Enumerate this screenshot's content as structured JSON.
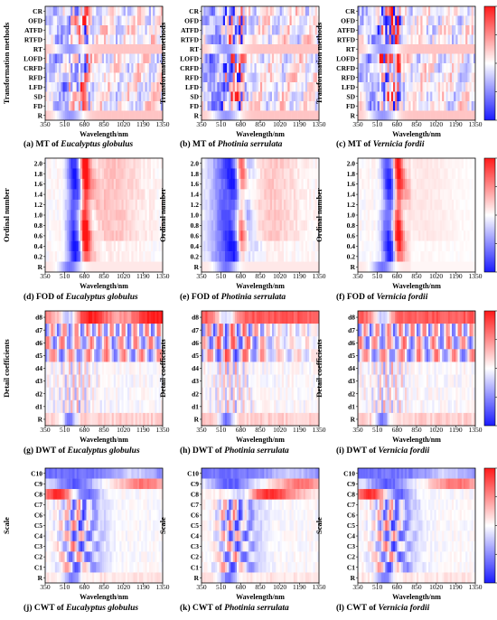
{
  "colorbar": {
    "ticks": [
      "1",
      "0.5",
      "0",
      "-0.5",
      "-1"
    ],
    "colors": {
      "low": "#1a1aff",
      "mid": "#ffffff",
      "high": "#ff1a1a"
    }
  },
  "x_axis": {
    "label": "Wavelength/nm",
    "ticks": [
      "350",
      "510",
      "680",
      "850",
      "1020",
      "1190",
      "1350"
    ]
  },
  "chart_data": [
    {
      "type": "heatmap",
      "panel": "a",
      "caption_prefix": "(a)",
      "caption_method": "MT of",
      "caption_species": "Eucalyptus globulus",
      "ylabel": "Transformation methods",
      "rows": [
        "CR",
        "OFD",
        "ATFD",
        "RTFD",
        "RT",
        "LOFD",
        "CRFD",
        "RFD",
        "LFD",
        "SD",
        "FD",
        "R"
      ],
      "xrange": [
        350,
        1350
      ],
      "clim": [
        -1,
        1
      ]
    },
    {
      "type": "heatmap",
      "panel": "b",
      "caption_prefix": "(b)",
      "caption_method": "MT of",
      "caption_species": "Photinia serrulata",
      "ylabel": "Transformation methods",
      "rows": [
        "CR",
        "OFD",
        "ATFD",
        "RTFD",
        "RT",
        "LOFD",
        "CRFD",
        "RFD",
        "LFD",
        "SD",
        "FD",
        "R"
      ],
      "xrange": [
        350,
        1350
      ],
      "clim": [
        -1,
        1
      ]
    },
    {
      "type": "heatmap",
      "panel": "c",
      "caption_prefix": "(c)",
      "caption_method": "MT of",
      "caption_species": "Vernicia fordii",
      "ylabel": "Transformation methods",
      "rows": [
        "CR",
        "OFD",
        "ATFD",
        "RTFD",
        "RT",
        "LOFD",
        "CRFD",
        "RFD",
        "LFD",
        "SD",
        "FD",
        "R"
      ],
      "xrange": [
        350,
        1350
      ],
      "clim": [
        -1,
        1
      ]
    },
    {
      "type": "heatmap",
      "panel": "d",
      "caption_prefix": "(d)",
      "caption_method": "FOD of",
      "caption_species": "Eucalyptus globulus",
      "ylabel": "Ordinal number",
      "rows": [
        "2.0",
        "1.8",
        "1.6",
        "1.4",
        "1.2",
        "1.0",
        "0.8",
        "0.6",
        "0.4",
        "0.2",
        "R"
      ],
      "xrange": [
        350,
        1350
      ],
      "clim": [
        -1,
        1
      ]
    },
    {
      "type": "heatmap",
      "panel": "e",
      "caption_prefix": "(e)",
      "caption_method": "FOD of",
      "caption_species": "Photinia serrulata",
      "ylabel": "Ordinal number",
      "rows": [
        "2.0",
        "1.8",
        "1.6",
        "1.4",
        "1.2",
        "1.0",
        "0.8",
        "0.6",
        "0.4",
        "0.2",
        "R"
      ],
      "xrange": [
        350,
        1350
      ],
      "clim": [
        -1,
        1
      ]
    },
    {
      "type": "heatmap",
      "panel": "f",
      "caption_prefix": "(f)",
      "caption_method": "FOD of",
      "caption_species": "Vernicia fordii",
      "ylabel": "Ordinal number",
      "rows": [
        "2.0",
        "1.8",
        "1.6",
        "1.4",
        "1.2",
        "1.0",
        "0.8",
        "0.6",
        "0.4",
        "0.2",
        "R"
      ],
      "xrange": [
        350,
        1350
      ],
      "clim": [
        -1,
        1
      ]
    },
    {
      "type": "heatmap",
      "panel": "g",
      "caption_prefix": "(g)",
      "caption_method": "DWT of",
      "caption_species": "Eucalyptus globulus",
      "ylabel": "Detail coefficients",
      "rows": [
        "d8",
        "d7",
        "d6",
        "d5",
        "d4",
        "d3",
        "d2",
        "d1",
        "R"
      ],
      "xrange": [
        350,
        1350
      ],
      "clim": [
        -1,
        1
      ]
    },
    {
      "type": "heatmap",
      "panel": "h",
      "caption_prefix": "(h)",
      "caption_method": "DWT of",
      "caption_species": "Photinia serrulata",
      "ylabel": "Detail coefficients",
      "rows": [
        "d8",
        "d7",
        "d6",
        "d5",
        "d4",
        "d3",
        "d2",
        "d1",
        "R"
      ],
      "xrange": [
        350,
        1350
      ],
      "clim": [
        -1,
        1
      ]
    },
    {
      "type": "heatmap",
      "panel": "i",
      "caption_prefix": "(i)",
      "caption_method": "DWT of",
      "caption_species": "Vernicia fordii",
      "ylabel": "Detail coefficients",
      "rows": [
        "d8",
        "d7",
        "d6",
        "d5",
        "d4",
        "d3",
        "d2",
        "d1",
        "R"
      ],
      "xrange": [
        350,
        1350
      ],
      "clim": [
        -1,
        1
      ]
    },
    {
      "type": "heatmap",
      "panel": "j",
      "caption_prefix": "(j)",
      "caption_method": "CWT of",
      "caption_species": "Eucalyptus globulus",
      "ylabel": "Scale",
      "rows": [
        "C10",
        "C9",
        "C8",
        "C7",
        "C6",
        "C5",
        "C4",
        "C3",
        "C2",
        "C1",
        "R"
      ],
      "xrange": [
        350,
        1350
      ],
      "clim": [
        -1,
        1
      ]
    },
    {
      "type": "heatmap",
      "panel": "k",
      "caption_prefix": "(k)",
      "caption_method": "CWT of",
      "caption_species": "Photinia serrulata",
      "ylabel": "Scale",
      "rows": [
        "C10",
        "C9",
        "C8",
        "C7",
        "C6",
        "C5",
        "C4",
        "C3",
        "C2",
        "C1",
        "R"
      ],
      "xrange": [
        350,
        1350
      ],
      "clim": [
        -1,
        1
      ]
    },
    {
      "type": "heatmap",
      "panel": "l",
      "caption_prefix": "(l)",
      "caption_method": "CWT of",
      "caption_species": "Vernicia fordii",
      "ylabel": "Scale",
      "rows": [
        "C10",
        "C9",
        "C8",
        "C7",
        "C6",
        "C5",
        "C4",
        "C3",
        "C2",
        "C1",
        "R"
      ],
      "xrange": [
        350,
        1350
      ],
      "clim": [
        -1,
        1
      ]
    }
  ]
}
